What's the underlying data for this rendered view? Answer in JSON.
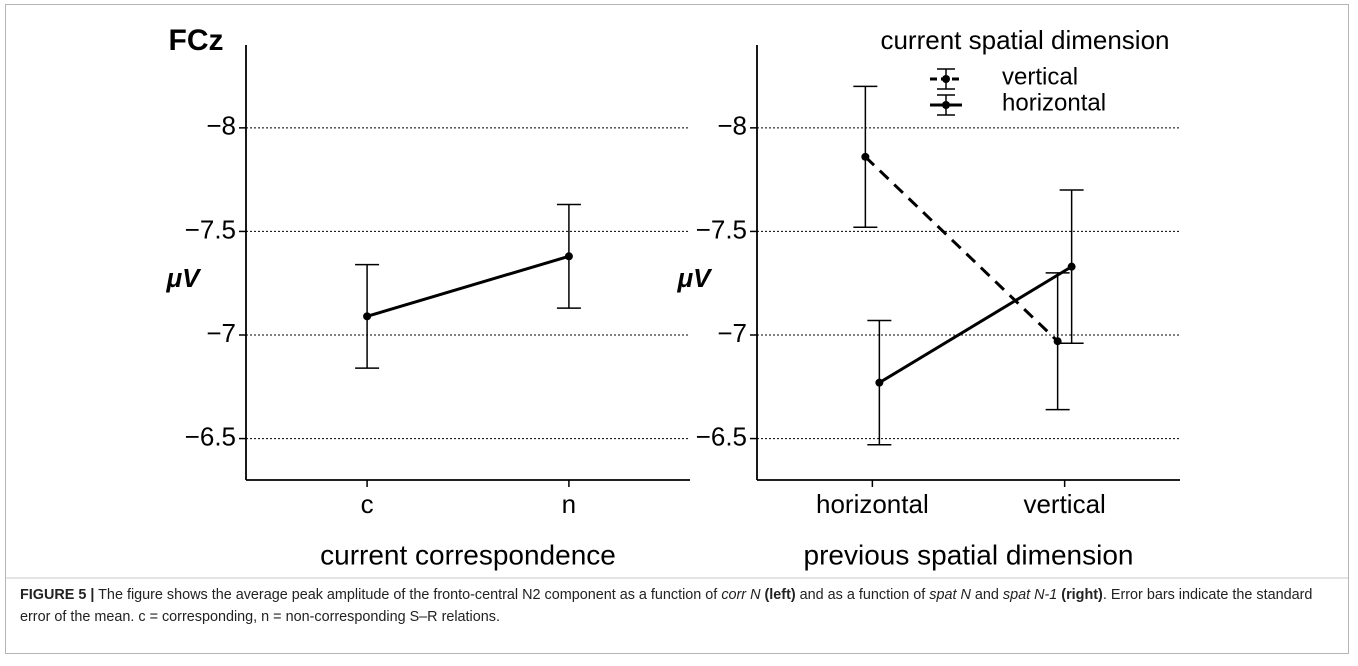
{
  "chart_data": [
    {
      "type": "line",
      "title": "FCz",
      "ylabel": "μV",
      "xlabel": "current correspondence",
      "categories": [
        "c",
        "n"
      ],
      "series": [
        {
          "name": null,
          "color": "#000000",
          "linestyle": "solid",
          "values": [
            -7.09,
            -7.38
          ],
          "errors": [
            0.25,
            0.25
          ]
        }
      ],
      "ylim": [
        -8.4,
        -6.3
      ],
      "y_reversed": true,
      "yticks": [
        {
          "value": -8,
          "label": "−8"
        },
        {
          "value": -7.5,
          "label": "−7.5"
        },
        {
          "value": -7,
          "label": "−7"
        },
        {
          "value": -6.5,
          "label": "−6.5"
        }
      ],
      "grid": true
    },
    {
      "type": "line",
      "ylabel": "μV",
      "xlabel": "previous spatial dimension",
      "legend_title": "current spatial dimension",
      "categories": [
        "horizontal",
        "vertical"
      ],
      "series": [
        {
          "name": "vertical",
          "color": "#000000",
          "linestyle": "dashed",
          "values": [
            -7.86,
            -6.97
          ],
          "errors": [
            0.34,
            0.33
          ]
        },
        {
          "name": "horizontal",
          "color": "#000000",
          "linestyle": "solid",
          "values": [
            -6.77,
            -7.33
          ],
          "errors": [
            0.3,
            0.37
          ]
        }
      ],
      "ylim": [
        -8.4,
        -6.3
      ],
      "y_reversed": true,
      "yticks": [
        {
          "value": -8,
          "label": "−8"
        },
        {
          "value": -7.5,
          "label": "−7.5"
        },
        {
          "value": -7,
          "label": "−7"
        },
        {
          "value": -6.5,
          "label": "−6.5"
        }
      ],
      "grid": true,
      "legend": "top"
    }
  ],
  "caption": [
    {
      "text": "FIGURE 5 |",
      "style": "bold"
    },
    {
      "text": " The figure shows the average peak amplitude of the fronto-central N2 component as a function of ",
      "style": "normal"
    },
    {
      "text": "corr N",
      "style": "italic"
    },
    {
      "text": " (left)",
      "style": "bold"
    },
    {
      "text": " and as a function of ",
      "style": "normal"
    },
    {
      "text": "spat N",
      "style": "italic"
    },
    {
      "text": " and ",
      "style": "normal"
    },
    {
      "text": "spat N-1",
      "style": "italic"
    },
    {
      "text": " (right)",
      "style": "bold"
    },
    {
      "text": ". Error bars indicate the standard error of the mean. c = corresponding, n = non-corresponding S–R relations.",
      "style": "normal"
    }
  ]
}
